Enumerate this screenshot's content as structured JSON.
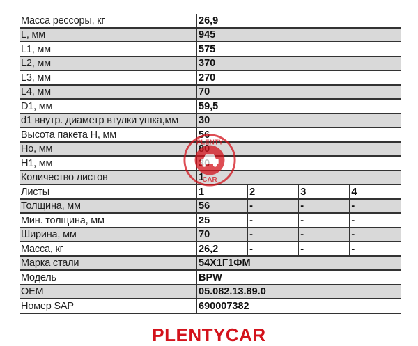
{
  "rows": [
    {
      "label": "Масса рессоры, кг",
      "value": "26,9"
    },
    {
      "label": "L, мм",
      "value": "945"
    },
    {
      "label": "L1, мм",
      "value": "575"
    },
    {
      "label": "L2, мм",
      "value": "370"
    },
    {
      "label": "L3, мм",
      "value": "270"
    },
    {
      "label": "L4, мм",
      "value": "70"
    },
    {
      "label": "D1, мм",
      "value": "59,5"
    },
    {
      "label": "d1 внутр. диаметр втулки ушка,мм",
      "value": "30"
    },
    {
      "label": "Высота пакета H, мм",
      "value": "56"
    },
    {
      "label": "Ho, мм",
      "value": "80"
    },
    {
      "label": "H1, мм",
      "value": "30"
    },
    {
      "label": "Количество листов",
      "value": "1"
    }
  ],
  "leaves": {
    "header": {
      "label": "Листы",
      "cols": [
        "1",
        "2",
        "3",
        "4"
      ]
    },
    "rows": [
      {
        "label": "Толщина, мм",
        "cols": [
          "56",
          "-",
          "-",
          "-"
        ]
      },
      {
        "label": "Мин. толщина, мм",
        "cols": [
          "25",
          "-",
          "-",
          "-"
        ]
      },
      {
        "label": "Ширина, мм",
        "cols": [
          "70",
          "-",
          "-",
          "-"
        ]
      },
      {
        "label": "Масса, кг",
        "cols": [
          "26,2",
          "-",
          "-",
          "-"
        ]
      }
    ]
  },
  "footer_rows": [
    {
      "label": "Марка стали",
      "value": "54Х1Г1ФМ"
    },
    {
      "label": "Модель",
      "value": "BPW"
    },
    {
      "label": "OEM",
      "value": "05.082.13.89.0"
    },
    {
      "label": "Номер SAP",
      "value": "690007382"
    }
  ],
  "watermark": {
    "text_top": "PLENTY",
    "text_bottom": "CAR",
    "icon": "car-icon",
    "color": "#d3121b"
  },
  "brand": {
    "text": "PLENTYCAR",
    "color": "#d3121b"
  }
}
